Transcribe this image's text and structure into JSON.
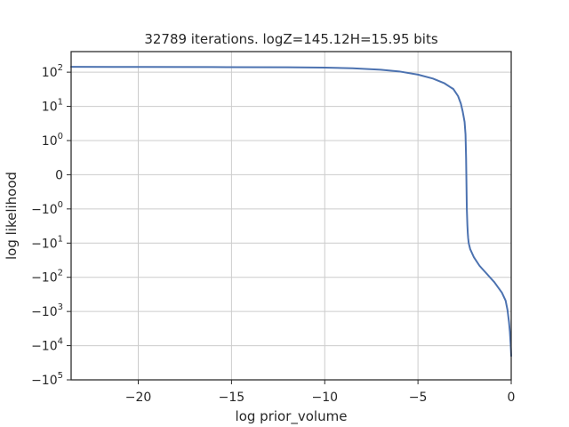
{
  "chart_data": {
    "type": "line",
    "title": "32789 iterations. logZ=145.12H=15.95 bits",
    "xlabel": "log prior_volume",
    "ylabel": "log likelihood",
    "xlim": [
      -23.6,
      0
    ],
    "yscale": "symlog",
    "ylim": [
      -100000,
      400
    ],
    "grid": true,
    "line_color": "#4c72b0",
    "x_ticks": [
      {
        "value": -20,
        "label": "−20"
      },
      {
        "value": -15,
        "label": "−15"
      },
      {
        "value": -10,
        "label": "−10"
      },
      {
        "value": -5,
        "label": "−5"
      },
      {
        "value": 0,
        "label": "0"
      }
    ],
    "y_ticks": [
      {
        "value": 100,
        "base": "10",
        "exp": "2"
      },
      {
        "value": 10,
        "base": "10",
        "exp": "1"
      },
      {
        "value": 1,
        "base": "10",
        "exp": "0"
      },
      {
        "value": 0,
        "base": "0",
        "exp": ""
      },
      {
        "value": -1,
        "base": "−10",
        "exp": "0"
      },
      {
        "value": -10,
        "base": "−10",
        "exp": "1"
      },
      {
        "value": -100,
        "base": "−10",
        "exp": "2"
      },
      {
        "value": -1000,
        "base": "−10",
        "exp": "3"
      },
      {
        "value": -10000,
        "base": "−10",
        "exp": "4"
      },
      {
        "value": -100000,
        "base": "−10",
        "exp": "5"
      }
    ],
    "series": [
      {
        "x": [
          -23.6,
          -20,
          -16,
          -12,
          -10,
          -8.5,
          -7,
          -6,
          -5,
          -4.2,
          -3.6,
          -3.1,
          -2.85,
          -2.7,
          -2.6,
          -2.5,
          -2.45,
          -2.42,
          -2.38,
          -2.35,
          -2.33,
          -2.31,
          -2.28,
          -2.2,
          -2.0,
          -1.7,
          -1.3,
          -0.9,
          -0.5,
          -0.3,
          -0.2,
          -0.12,
          -0.07,
          -0.03,
          0
        ],
        "y": [
          143,
          142,
          141,
          139,
          136,
          130,
          118,
          105,
          85,
          65,
          48,
          32,
          20,
          12,
          7,
          3.5,
          1.5,
          0.5,
          -1,
          -3,
          -5,
          -7,
          -10,
          -15,
          -26,
          -46,
          -80,
          -140,
          -280,
          -480,
          -900,
          -2000,
          -4000,
          -9000,
          -20000
        ]
      }
    ]
  }
}
